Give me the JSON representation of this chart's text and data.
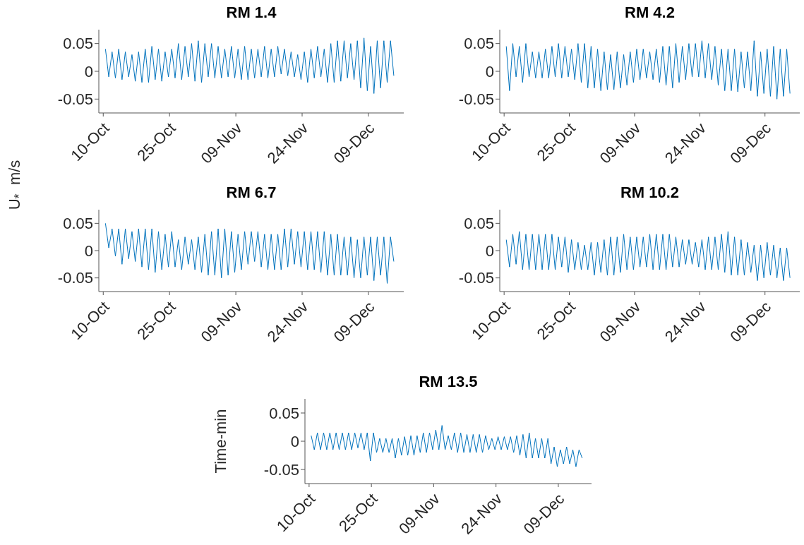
{
  "chart_data": [
    {
      "type": "line",
      "title": "RM 1.4",
      "marker": "none",
      "color": "#0072bd",
      "xlim": [
        "--10-09",
        "--12-17"
      ],
      "ylim": [
        -0.075,
        0.075
      ],
      "yticks": [
        -0.05,
        0,
        0.05
      ],
      "xticks": [
        {
          "value": "--10-10",
          "label": "10-Oct"
        },
        {
          "value": "--10-25",
          "label": "25-Oct"
        },
        {
          "value": "--11-09",
          "label": "09-Nov"
        },
        {
          "value": "--11-24",
          "label": "24-Nov"
        },
        {
          "value": "--12-09",
          "label": "09-Dec"
        }
      ],
      "x": [
        "--10-10T12:00",
        "--10-11T06:00",
        "--10-12T00:00",
        "--10-12T18:00",
        "--10-13T12:00",
        "--10-14T06:00",
        "--10-15T00:00",
        "--10-15T18:00",
        "--10-16T12:00",
        "--10-17T06:00",
        "--10-18T00:00",
        "--10-18T18:00",
        "--10-19T12:00",
        "--10-20T06:00",
        "--10-21T00:00",
        "--10-21T18:00",
        "--10-22T12:00",
        "--10-23T06:00",
        "--10-24T00:00",
        "--10-24T18:00",
        "--10-25T12:00",
        "--10-26T06:00",
        "--10-27T00:00",
        "--10-27T18:00",
        "--10-28T12:00",
        "--10-29T06:00",
        "--10-30T00:00",
        "--10-30T18:00",
        "--10-31T12:00",
        "--11-01T06:00",
        "--11-02T00:00",
        "--11-02T18:00",
        "--11-03T12:00",
        "--11-04T06:00",
        "--11-05T00:00",
        "--11-05T18:00",
        "--11-06T12:00",
        "--11-07T06:00",
        "--11-08T00:00",
        "--11-08T18:00",
        "--11-09T12:00",
        "--11-10T06:00",
        "--11-11T00:00",
        "--11-11T18:00",
        "--11-12T12:00",
        "--11-13T06:00",
        "--11-14T00:00",
        "--11-14T18:00",
        "--11-15T12:00",
        "--11-16T06:00",
        "--11-17T00:00",
        "--11-17T18:00",
        "--11-18T12:00",
        "--11-19T06:00",
        "--11-20T00:00",
        "--11-20T18:00",
        "--11-21T12:00",
        "--11-22T06:00",
        "--11-23T00:00",
        "--11-23T18:00",
        "--11-24T12:00",
        "--11-25T06:00",
        "--11-26T00:00",
        "--11-26T18:00",
        "--11-27T12:00",
        "--11-28T06:00",
        "--11-29T00:00",
        "--11-29T18:00",
        "--11-30T12:00",
        "--12-01T06:00",
        "--12-02T00:00",
        "--12-02T18:00",
        "--12-03T12:00",
        "--12-04T06:00",
        "--12-05T00:00",
        "--12-05T18:00",
        "--12-06T12:00",
        "--12-07T06:00",
        "--12-08T00:00",
        "--12-08T18:00",
        "--12-09T12:00",
        "--12-10T06:00",
        "--12-11T00:00",
        "--12-11T18:00",
        "--12-12T12:00",
        "--12-13T06:00",
        "--12-14T00:00",
        "--12-14T18:00"
      ],
      "values": [
        0.04,
        -0.01,
        0.035,
        -0.012,
        0.04,
        -0.015,
        0.035,
        -0.01,
        0.03,
        -0.018,
        0.035,
        -0.02,
        0.04,
        -0.02,
        0.045,
        -0.015,
        0.04,
        -0.018,
        0.035,
        -0.01,
        0.04,
        -0.012,
        0.05,
        -0.015,
        0.045,
        -0.01,
        0.05,
        -0.018,
        0.055,
        -0.02,
        0.05,
        -0.01,
        0.05,
        -0.012,
        0.045,
        -0.012,
        0.04,
        -0.01,
        0.045,
        -0.012,
        0.04,
        -0.015,
        0.045,
        -0.015,
        0.04,
        -0.012,
        0.04,
        -0.01,
        0.045,
        -0.012,
        0.04,
        -0.01,
        0.045,
        -0.005,
        0.04,
        -0.008,
        0.035,
        -0.01,
        0.03,
        -0.015,
        0.035,
        -0.02,
        0.04,
        -0.012,
        0.045,
        -0.01,
        0.04,
        -0.02,
        0.05,
        -0.02,
        0.055,
        -0.018,
        0.055,
        -0.012,
        0.05,
        -0.015,
        0.055,
        -0.03,
        0.06,
        -0.035,
        0.045,
        -0.04,
        0.055,
        -0.03,
        0.055,
        -0.02,
        0.055,
        -0.008
      ]
    },
    {
      "type": "line",
      "title": "RM 4.2",
      "marker": "none",
      "color": "#0072bd",
      "xlim": [
        "--10-09",
        "--12-17"
      ],
      "ylim": [
        -0.075,
        0.075
      ],
      "yticks": [
        -0.05,
        0,
        0.05
      ],
      "xticks": [
        {
          "value": "--10-10",
          "label": "10-Oct"
        },
        {
          "value": "--10-25",
          "label": "25-Oct"
        },
        {
          "value": "--11-09",
          "label": "09-Nov"
        },
        {
          "value": "--11-24",
          "label": "24-Nov"
        },
        {
          "value": "--12-09",
          "label": "09-Dec"
        }
      ],
      "x": [
        "--10-10T12:00",
        "--10-11T06:00",
        "--10-12T00:00",
        "--10-12T18:00",
        "--10-13T12:00",
        "--10-14T06:00",
        "--10-15T00:00",
        "--10-15T18:00",
        "--10-16T12:00",
        "--10-17T06:00",
        "--10-18T00:00",
        "--10-18T18:00",
        "--10-19T12:00",
        "--10-20T06:00",
        "--10-21T00:00",
        "--10-21T18:00",
        "--10-22T12:00",
        "--10-23T06:00",
        "--10-24T00:00",
        "--10-24T18:00",
        "--10-25T12:00",
        "--10-26T06:00",
        "--10-27T00:00",
        "--10-27T18:00",
        "--10-28T12:00",
        "--10-29T06:00",
        "--10-30T00:00",
        "--10-30T18:00",
        "--10-31T12:00",
        "--11-01T06:00",
        "--11-02T00:00",
        "--11-02T18:00",
        "--11-03T12:00",
        "--11-04T06:00",
        "--11-05T00:00",
        "--11-05T18:00",
        "--11-06T12:00",
        "--11-07T06:00",
        "--11-08T00:00",
        "--11-08T18:00",
        "--11-09T12:00",
        "--11-10T06:00",
        "--11-11T00:00",
        "--11-11T18:00",
        "--11-12T12:00",
        "--11-13T06:00",
        "--11-14T00:00",
        "--11-14T18:00",
        "--11-15T12:00",
        "--11-16T06:00",
        "--11-17T00:00",
        "--11-17T18:00",
        "--11-18T12:00",
        "--11-19T06:00",
        "--11-20T00:00",
        "--11-20T18:00",
        "--11-21T12:00",
        "--11-22T06:00",
        "--11-23T00:00",
        "--11-23T18:00",
        "--11-24T12:00",
        "--11-25T06:00",
        "--11-26T00:00",
        "--11-26T18:00",
        "--11-27T12:00",
        "--11-28T06:00",
        "--11-29T00:00",
        "--11-29T18:00",
        "--11-30T12:00",
        "--12-01T06:00",
        "--12-02T00:00",
        "--12-02T18:00",
        "--12-03T12:00",
        "--12-04T06:00",
        "--12-05T00:00",
        "--12-05T18:00",
        "--12-06T12:00",
        "--12-07T06:00",
        "--12-08T00:00",
        "--12-08T18:00",
        "--12-09T12:00",
        "--12-10T06:00",
        "--12-11T00:00",
        "--12-11T18:00",
        "--12-12T12:00",
        "--12-13T06:00",
        "--12-14T00:00",
        "--12-14T18:00"
      ],
      "values": [
        0.045,
        -0.035,
        0.05,
        -0.01,
        0.045,
        -0.02,
        0.05,
        -0.01,
        0.035,
        -0.012,
        0.035,
        -0.012,
        0.04,
        -0.012,
        0.045,
        -0.01,
        0.05,
        -0.012,
        0.045,
        -0.01,
        0.04,
        -0.015,
        0.05,
        -0.02,
        0.05,
        -0.03,
        0.045,
        -0.03,
        0.04,
        -0.035,
        0.035,
        -0.033,
        0.03,
        -0.033,
        0.035,
        -0.03,
        0.03,
        -0.025,
        0.035,
        -0.02,
        0.04,
        -0.015,
        0.04,
        -0.012,
        0.035,
        -0.015,
        0.04,
        -0.02,
        0.045,
        -0.025,
        0.045,
        -0.03,
        0.05,
        -0.02,
        0.045,
        -0.015,
        0.05,
        -0.01,
        0.05,
        -0.01,
        0.055,
        -0.012,
        0.05,
        -0.015,
        0.045,
        -0.025,
        0.04,
        -0.035,
        0.04,
        -0.035,
        0.04,
        -0.037,
        0.035,
        -0.03,
        0.035,
        -0.035,
        0.055,
        -0.045,
        0.035,
        -0.04,
        0.04,
        -0.045,
        0.045,
        -0.05,
        0.04,
        -0.045,
        0.04,
        -0.04
      ]
    },
    {
      "type": "line",
      "title": "RM 6.7",
      "ylabel": "U$_{*}$  m/s",
      "marker": "none",
      "color": "#0072bd",
      "xlim": [
        "--10-09",
        "--12-17"
      ],
      "ylim": [
        -0.075,
        0.075
      ],
      "yticks": [
        -0.05,
        0,
        0.05
      ],
      "xticks": [
        {
          "value": "--10-10",
          "label": "10-Oct"
        },
        {
          "value": "--10-25",
          "label": "25-Oct"
        },
        {
          "value": "--11-09",
          "label": "09-Nov"
        },
        {
          "value": "--11-24",
          "label": "24-Nov"
        },
        {
          "value": "--12-09",
          "label": "09-Dec"
        }
      ],
      "x": [
        "--10-10T12:00",
        "--10-11T06:00",
        "--10-12T00:00",
        "--10-12T18:00",
        "--10-13T12:00",
        "--10-14T06:00",
        "--10-15T00:00",
        "--10-15T18:00",
        "--10-16T12:00",
        "--10-17T06:00",
        "--10-18T00:00",
        "--10-18T18:00",
        "--10-19T12:00",
        "--10-20T06:00",
        "--10-21T00:00",
        "--10-21T18:00",
        "--10-22T12:00",
        "--10-23T06:00",
        "--10-24T00:00",
        "--10-24T18:00",
        "--10-25T12:00",
        "--10-26T06:00",
        "--10-27T00:00",
        "--10-27T18:00",
        "--10-28T12:00",
        "--10-29T06:00",
        "--10-30T00:00",
        "--10-30T18:00",
        "--10-31T12:00",
        "--11-01T06:00",
        "--11-02T00:00",
        "--11-02T18:00",
        "--11-03T12:00",
        "--11-04T06:00",
        "--11-05T00:00",
        "--11-05T18:00",
        "--11-06T12:00",
        "--11-07T06:00",
        "--11-08T00:00",
        "--11-08T18:00",
        "--11-09T12:00",
        "--11-10T06:00",
        "--11-11T00:00",
        "--11-11T18:00",
        "--11-12T12:00",
        "--11-13T06:00",
        "--11-14T00:00",
        "--11-14T18:00",
        "--11-15T12:00",
        "--11-16T06:00",
        "--11-17T00:00",
        "--11-17T18:00",
        "--11-18T12:00",
        "--11-19T06:00",
        "--11-20T00:00",
        "--11-20T18:00",
        "--11-21T12:00",
        "--11-22T06:00",
        "--11-23T00:00",
        "--11-23T18:00",
        "--11-24T12:00",
        "--11-25T06:00",
        "--11-26T00:00",
        "--11-26T18:00",
        "--11-27T12:00",
        "--11-28T06:00",
        "--11-29T00:00",
        "--11-29T18:00",
        "--11-30T12:00",
        "--12-01T06:00",
        "--12-02T00:00",
        "--12-02T18:00",
        "--12-03T12:00",
        "--12-04T06:00",
        "--12-05T00:00",
        "--12-05T18:00",
        "--12-06T12:00",
        "--12-07T06:00",
        "--12-08T00:00",
        "--12-08T18:00",
        "--12-09T12:00",
        "--12-10T06:00",
        "--12-11T00:00",
        "--12-11T18:00",
        "--12-12T12:00",
        "--12-13T06:00",
        "--12-14T00:00",
        "--12-14T18:00"
      ],
      "values": [
        0.05,
        0.005,
        0.04,
        -0.01,
        0.04,
        -0.025,
        0.04,
        -0.015,
        0.035,
        -0.02,
        0.04,
        -0.03,
        0.04,
        -0.035,
        0.04,
        -0.04,
        0.035,
        -0.035,
        0.03,
        -0.03,
        0.035,
        -0.03,
        0.02,
        -0.035,
        0.025,
        -0.025,
        0.02,
        -0.035,
        0.025,
        -0.04,
        0.03,
        -0.045,
        0.035,
        -0.045,
        0.04,
        -0.05,
        0.04,
        -0.045,
        0.035,
        -0.04,
        0.03,
        -0.035,
        0.035,
        -0.025,
        0.035,
        -0.02,
        0.035,
        -0.03,
        0.03,
        -0.035,
        0.03,
        -0.035,
        0.03,
        -0.035,
        0.04,
        -0.03,
        0.04,
        -0.025,
        0.035,
        -0.03,
        0.035,
        -0.035,
        0.035,
        -0.035,
        0.035,
        -0.04,
        0.035,
        -0.045,
        0.03,
        -0.045,
        0.03,
        -0.045,
        0.025,
        -0.045,
        0.025,
        -0.05,
        0.02,
        -0.05,
        0.025,
        -0.045,
        0.025,
        -0.055,
        0.025,
        -0.045,
        0.025,
        -0.06,
        0.025,
        -0.02
      ]
    },
    {
      "type": "line",
      "title": "RM 10.2",
      "marker": "none",
      "color": "#0072bd",
      "xlim": [
        "--10-09",
        "--12-17"
      ],
      "ylim": [
        -0.075,
        0.075
      ],
      "yticks": [
        -0.05,
        0,
        0.05
      ],
      "xticks": [
        {
          "value": "--10-10",
          "label": "10-Oct"
        },
        {
          "value": "--10-25",
          "label": "25-Oct"
        },
        {
          "value": "--11-09",
          "label": "09-Nov"
        },
        {
          "value": "--11-24",
          "label": "24-Nov"
        },
        {
          "value": "--12-09",
          "label": "09-Dec"
        }
      ],
      "x": [
        "--10-10T12:00",
        "--10-11T06:00",
        "--10-12T00:00",
        "--10-12T18:00",
        "--10-13T12:00",
        "--10-14T06:00",
        "--10-15T00:00",
        "--10-15T18:00",
        "--10-16T12:00",
        "--10-17T06:00",
        "--10-18T00:00",
        "--10-18T18:00",
        "--10-19T12:00",
        "--10-20T06:00",
        "--10-21T00:00",
        "--10-21T18:00",
        "--10-22T12:00",
        "--10-23T06:00",
        "--10-24T00:00",
        "--10-24T18:00",
        "--10-25T12:00",
        "--10-26T06:00",
        "--10-27T00:00",
        "--10-27T18:00",
        "--10-28T12:00",
        "--10-29T06:00",
        "--10-30T00:00",
        "--10-30T18:00",
        "--10-31T12:00",
        "--11-01T06:00",
        "--11-02T00:00",
        "--11-02T18:00",
        "--11-03T12:00",
        "--11-04T06:00",
        "--11-05T00:00",
        "--11-05T18:00",
        "--11-06T12:00",
        "--11-07T06:00",
        "--11-08T00:00",
        "--11-08T18:00",
        "--11-09T12:00",
        "--11-10T06:00",
        "--11-11T00:00",
        "--11-11T18:00",
        "--11-12T12:00",
        "--11-13T06:00",
        "--11-14T00:00",
        "--11-14T18:00",
        "--11-15T12:00",
        "--11-16T06:00",
        "--11-17T00:00",
        "--11-17T18:00",
        "--11-18T12:00",
        "--11-19T06:00",
        "--11-20T00:00",
        "--11-20T18:00",
        "--11-21T12:00",
        "--11-22T06:00",
        "--11-23T00:00",
        "--11-23T18:00",
        "--11-24T12:00",
        "--11-25T06:00",
        "--11-26T00:00",
        "--11-26T18:00",
        "--11-27T12:00",
        "--11-28T06:00",
        "--11-29T00:00",
        "--11-29T18:00",
        "--11-30T12:00",
        "--12-01T06:00",
        "--12-02T00:00",
        "--12-02T18:00",
        "--12-03T12:00",
        "--12-04T06:00",
        "--12-05T00:00",
        "--12-05T18:00",
        "--12-06T12:00",
        "--12-07T06:00",
        "--12-08T00:00",
        "--12-08T18:00",
        "--12-09T12:00",
        "--12-10T06:00",
        "--12-11T00:00",
        "--12-11T18:00",
        "--12-12T12:00",
        "--12-13T06:00",
        "--12-14T00:00",
        "--12-14T18:00"
      ],
      "values": [
        0.02,
        -0.03,
        0.03,
        -0.025,
        0.035,
        -0.035,
        0.03,
        -0.035,
        0.03,
        -0.035,
        0.03,
        -0.035,
        0.03,
        -0.035,
        0.03,
        -0.035,
        0.025,
        -0.03,
        0.025,
        -0.04,
        0.02,
        -0.035,
        0.015,
        -0.035,
        0.01,
        -0.035,
        0.015,
        -0.045,
        0.015,
        -0.04,
        0.02,
        -0.045,
        0.025,
        -0.045,
        0.025,
        -0.04,
        0.03,
        -0.035,
        0.025,
        -0.035,
        0.025,
        -0.03,
        0.025,
        -0.03,
        0.03,
        -0.035,
        0.03,
        -0.035,
        0.03,
        -0.035,
        0.03,
        -0.03,
        0.025,
        -0.03,
        0.02,
        -0.025,
        0.02,
        -0.025,
        0.015,
        -0.03,
        0.02,
        -0.035,
        0.025,
        -0.035,
        0.025,
        -0.035,
        0.03,
        -0.04,
        0.035,
        -0.045,
        0.025,
        -0.045,
        0.02,
        -0.045,
        0.015,
        -0.04,
        0.01,
        -0.055,
        0.01,
        -0.05,
        0.015,
        -0.045,
        0.01,
        -0.05,
        0.005,
        -0.055,
        0.005,
        -0.05
      ]
    },
    {
      "type": "line",
      "title": "RM 13.5",
      "ylabel": "Time-min",
      "marker": "none",
      "color": "#0072bd",
      "xlim": [
        "--10-09",
        "--12-17"
      ],
      "ylim": [
        -0.075,
        0.075
      ],
      "yticks": [
        -0.05,
        0,
        0.05
      ],
      "xticks": [
        {
          "value": "--10-10",
          "label": "10-Oct"
        },
        {
          "value": "--10-25",
          "label": "25-Oct"
        },
        {
          "value": "--11-09",
          "label": "09-Nov"
        },
        {
          "value": "--11-24",
          "label": "24-Nov"
        },
        {
          "value": "--12-09",
          "label": "09-Dec"
        }
      ],
      "x": [
        "--10-10T12:00",
        "--10-11T06:00",
        "--10-12T00:00",
        "--10-12T18:00",
        "--10-13T12:00",
        "--10-14T06:00",
        "--10-15T00:00",
        "--10-15T18:00",
        "--10-16T12:00",
        "--10-17T06:00",
        "--10-18T00:00",
        "--10-18T18:00",
        "--10-19T12:00",
        "--10-20T06:00",
        "--10-21T00:00",
        "--10-21T18:00",
        "--10-22T12:00",
        "--10-23T06:00",
        "--10-24T00:00",
        "--10-24T18:00",
        "--10-25T12:00",
        "--10-26T06:00",
        "--10-27T00:00",
        "--10-27T18:00",
        "--10-28T12:00",
        "--10-29T06:00",
        "--10-30T00:00",
        "--10-30T18:00",
        "--10-31T12:00",
        "--11-01T06:00",
        "--11-02T00:00",
        "--11-02T18:00",
        "--11-03T12:00",
        "--11-04T06:00",
        "--11-05T00:00",
        "--11-05T18:00",
        "--11-06T12:00",
        "--11-07T06:00",
        "--11-08T00:00",
        "--11-08T18:00",
        "--11-09T12:00",
        "--11-10T06:00",
        "--11-11T00:00",
        "--11-11T18:00",
        "--11-12T12:00",
        "--11-13T06:00",
        "--11-14T00:00",
        "--11-14T18:00",
        "--11-15T12:00",
        "--11-16T06:00",
        "--11-17T00:00",
        "--11-17T18:00",
        "--11-18T12:00",
        "--11-19T06:00",
        "--11-20T00:00",
        "--11-20T18:00",
        "--11-21T12:00",
        "--11-22T06:00",
        "--11-23T00:00",
        "--11-23T18:00",
        "--11-24T12:00",
        "--11-25T06:00",
        "--11-26T00:00",
        "--11-26T18:00",
        "--11-27T12:00",
        "--11-28T06:00",
        "--11-29T00:00",
        "--11-29T18:00",
        "--11-30T12:00",
        "--12-01T06:00",
        "--12-02T00:00",
        "--12-02T18:00",
        "--12-03T12:00",
        "--12-04T06:00",
        "--12-05T00:00",
        "--12-05T18:00",
        "--12-06T12:00",
        "--12-07T06:00",
        "--12-08T00:00",
        "--12-08T18:00",
        "--12-09T12:00",
        "--12-10T06:00",
        "--12-11T00:00",
        "--12-11T18:00",
        "--12-12T12:00",
        "--12-13T06:00",
        "--12-14T00:00",
        "--12-14T18:00"
      ],
      "values": [
        0.01,
        -0.015,
        0.015,
        -0.015,
        0.015,
        -0.015,
        0.015,
        -0.015,
        0.015,
        -0.015,
        0.015,
        -0.015,
        0.015,
        -0.015,
        0.015,
        -0.012,
        0.015,
        -0.015,
        0.015,
        -0.035,
        0.015,
        -0.02,
        0.005,
        -0.02,
        0.005,
        -0.02,
        0.005,
        -0.03,
        0.005,
        -0.025,
        0.008,
        -0.025,
        0.01,
        -0.025,
        0.01,
        -0.02,
        0.015,
        -0.02,
        0.015,
        -0.015,
        0.02,
        -0.015,
        0.028,
        -0.015,
        0.01,
        -0.015,
        0.015,
        -0.02,
        0.015,
        -0.02,
        0.012,
        -0.02,
        0.012,
        -0.02,
        0.012,
        -0.02,
        0.01,
        -0.015,
        0.005,
        -0.015,
        0.008,
        -0.015,
        0.008,
        -0.015,
        0.008,
        -0.02,
        0.01,
        -0.025,
        0.012,
        -0.03,
        0.015,
        -0.03,
        0.005,
        -0.03,
        0.005,
        -0.03,
        0.005,
        -0.04,
        -0.01,
        -0.045,
        -0.015,
        -0.04,
        -0.01,
        -0.04,
        -0.015,
        -0.045,
        -0.015,
        -0.03
      ]
    }
  ]
}
